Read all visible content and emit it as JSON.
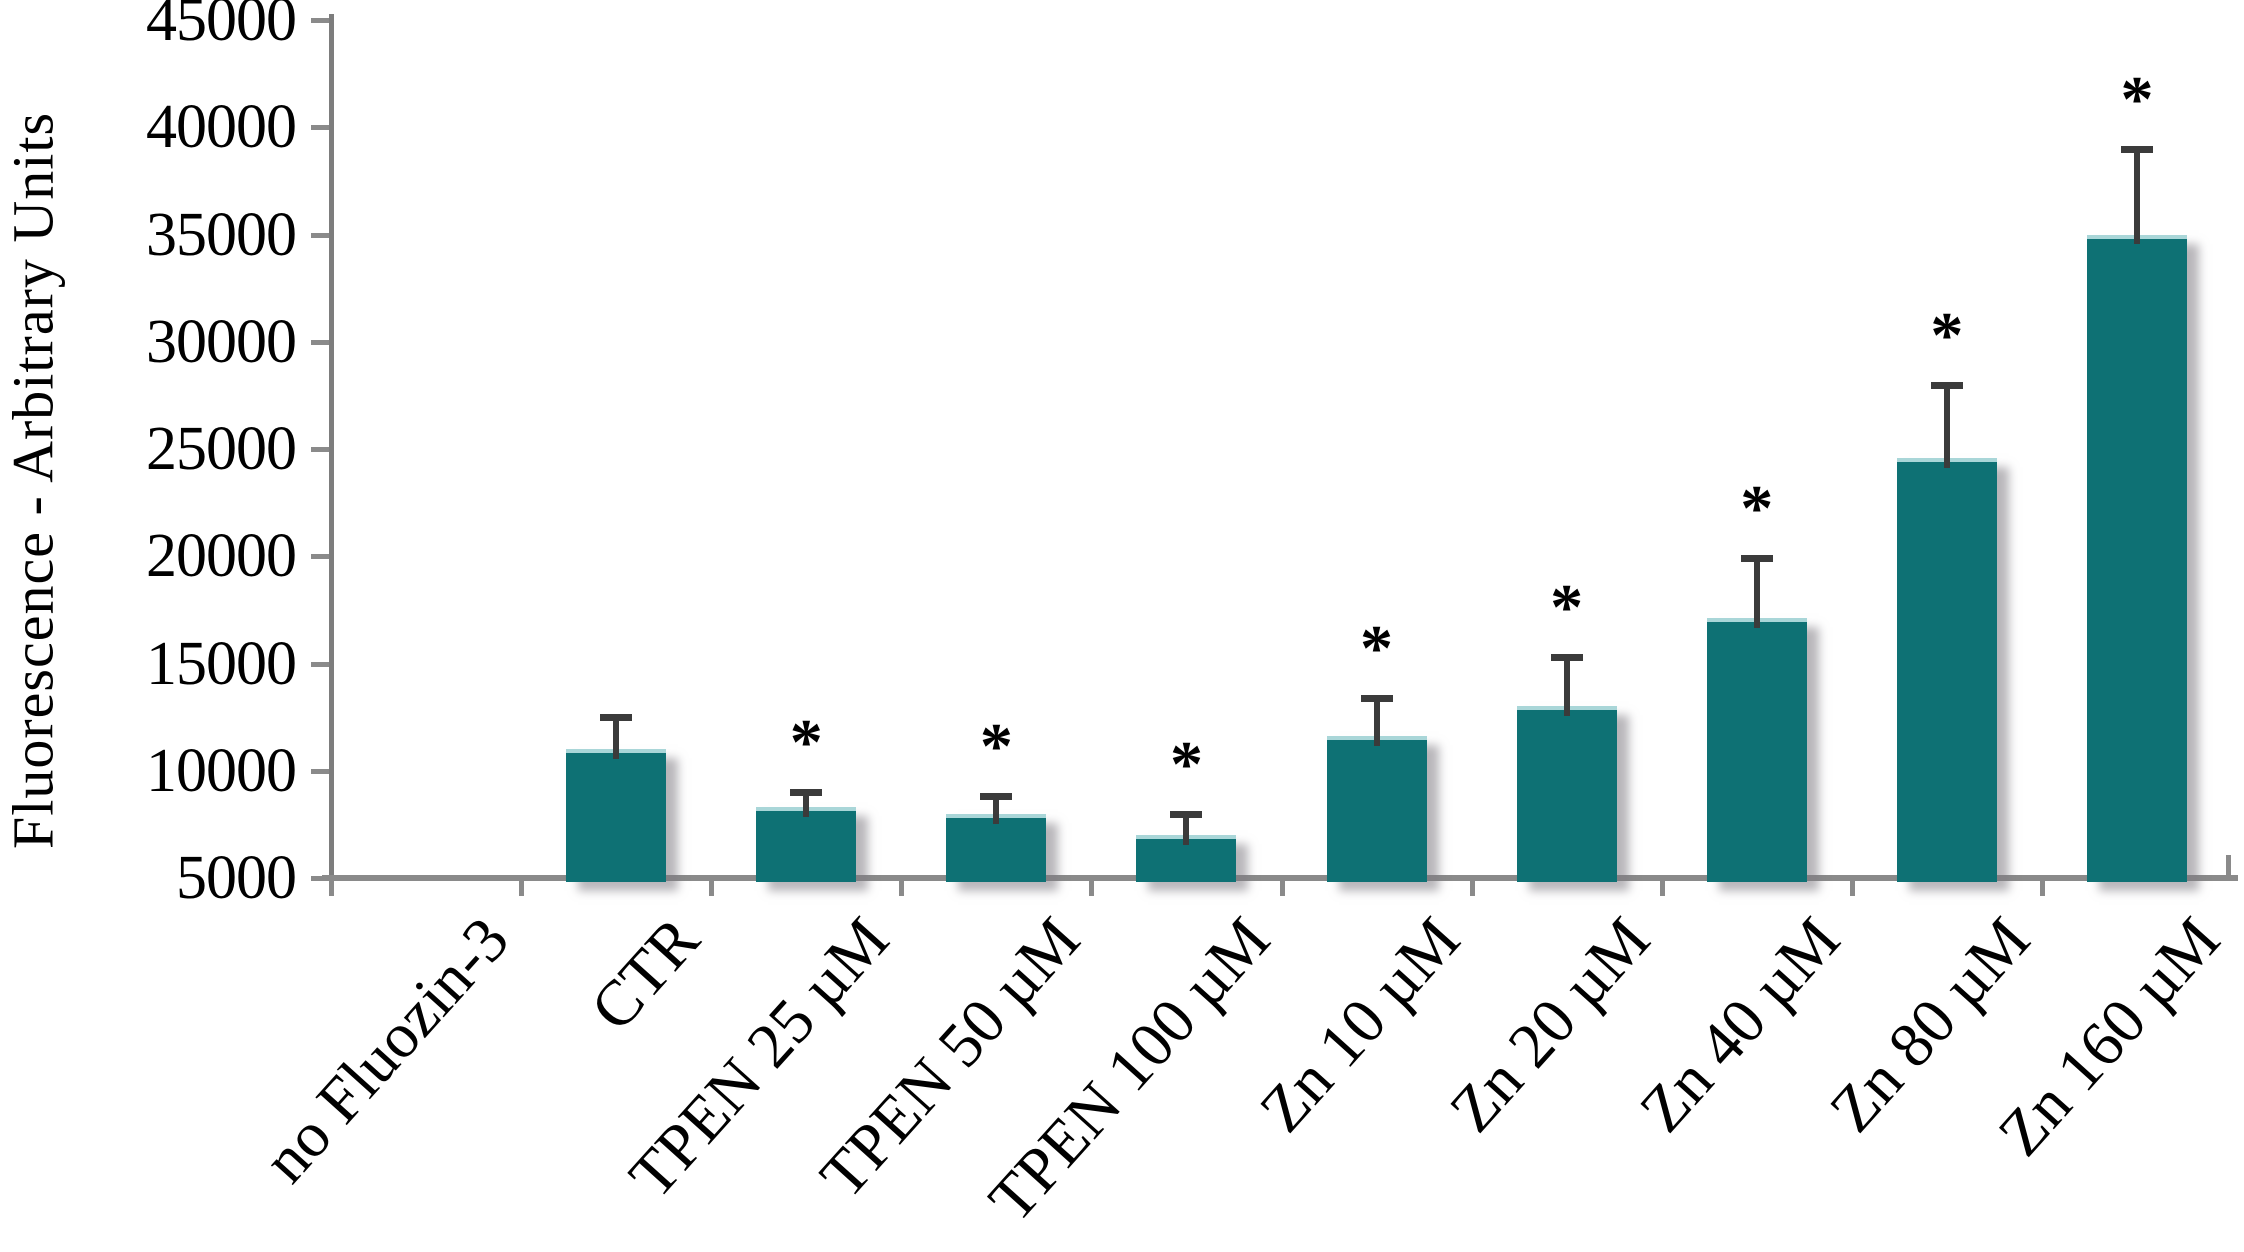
{
  "chart_data": {
    "type": "bar",
    "title": "",
    "xlabel": "",
    "ylabel": "Fluorescence - Arbitrary Units",
    "ylim": [
      5000,
      45000
    ],
    "ytick_step": 5000,
    "yticks": [
      5000,
      10000,
      15000,
      20000,
      25000,
      30000,
      35000,
      40000,
      45000
    ],
    "categories": [
      "no Fluozin-3",
      "CTR",
      "TPEN 25 µM",
      "TPEN 50 µM",
      "TPEN 100 µM",
      "Zn 10 µM",
      "Zn 20 µM",
      "Zn 40 µM",
      "Zn 80 µM",
      "Zn 160 µM"
    ],
    "values": [
      0,
      11000,
      8300,
      8000,
      7000,
      11600,
      13000,
      17100,
      24600,
      35000
    ],
    "errors_plus": [
      0,
      1500,
      700,
      800,
      1000,
      1800,
      2300,
      2800,
      3400,
      4000
    ],
    "significant": [
      false,
      false,
      true,
      true,
      true,
      true,
      true,
      true,
      true,
      true
    ],
    "significance_marker": "*",
    "grid": false,
    "legend": null,
    "colors": {
      "bar": "#0e7174",
      "bar_top_highlight": "#a9d6d8",
      "axis": "#8a8a8a",
      "error_bar": "#3b3b3b",
      "text": "#000000",
      "background": "#ffffff"
    }
  }
}
